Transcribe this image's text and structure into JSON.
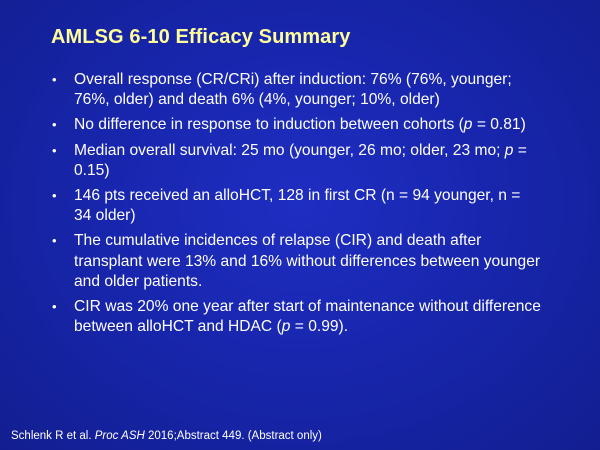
{
  "slide": {
    "title": "AMLSG 6-10 Efficacy Summary",
    "bullets": [
      {
        "parts": [
          "Overall response (CR/CRi) after induction: 76% (76%, younger; 76%, older) and death 6% (4%, younger; 10%, older)"
        ]
      },
      {
        "parts": [
          "No difference in response to induction between cohorts (",
          "p",
          " = 0.81)"
        ]
      },
      {
        "parts": [
          "Median overall survival: 25 mo (younger, 26 mo; older, 23 mo; ",
          "p",
          " = 0.15)"
        ]
      },
      {
        "parts": [
          "146 pts received an alloHCT, 128 in first CR (n = 94 younger, n = 34 older)"
        ]
      },
      {
        "parts": [
          "The cumulative incidences of relapse (CIR) and death after transplant were 13% and 16% without differences between younger and older patients."
        ]
      },
      {
        "parts": [
          "CIR was 20% one year after start of maintenance without difference between alloHCT and HDAC (",
          "p",
          " = 0.99)."
        ]
      }
    ],
    "bullet_symbol": "•",
    "citation": {
      "authors": "Schlenk R et al. ",
      "journal": "Proc ASH",
      "details": " 2016;Abstract 449. (Abstract only)"
    }
  },
  "colors": {
    "background": "#1826ae",
    "title": "#ffff99",
    "text": "#ffffff"
  }
}
